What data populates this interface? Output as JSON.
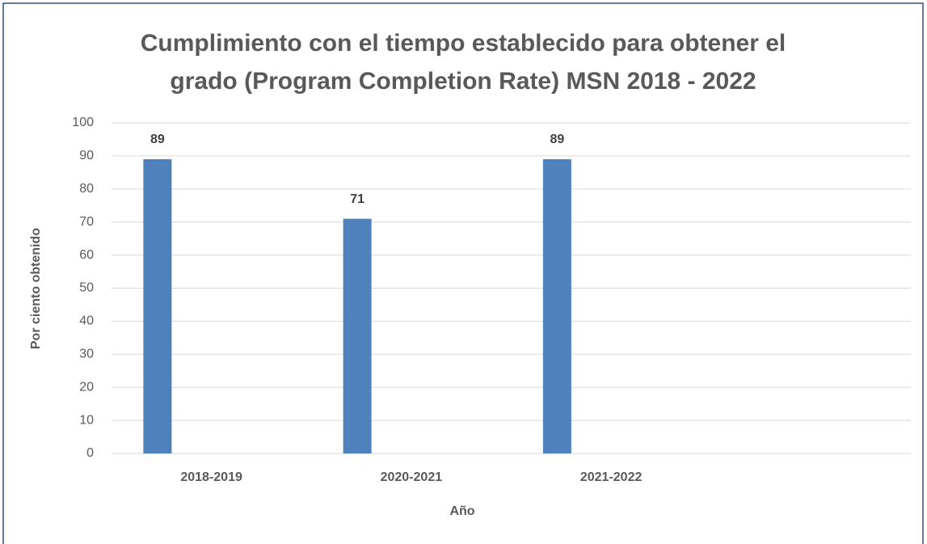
{
  "chart_data": {
    "type": "bar",
    "title": "Cumplimiento con el tiempo establecido para obtener el grado (Program Completion Rate) MSN 2018 - 2022",
    "categories": [
      "2018-2019",
      "2020-2021",
      "2021-2022",
      null
    ],
    "values": [
      89,
      71,
      89,
      null
    ],
    "color": "#4f81bd",
    "x_label": "Año",
    "y_label": "Por ciento obtenido",
    "ylim": [
      0,
      100
    ],
    "yticks": [
      0,
      10,
      20,
      30,
      40,
      50,
      60,
      70,
      80,
      90,
      100
    ],
    "grid": true
  }
}
